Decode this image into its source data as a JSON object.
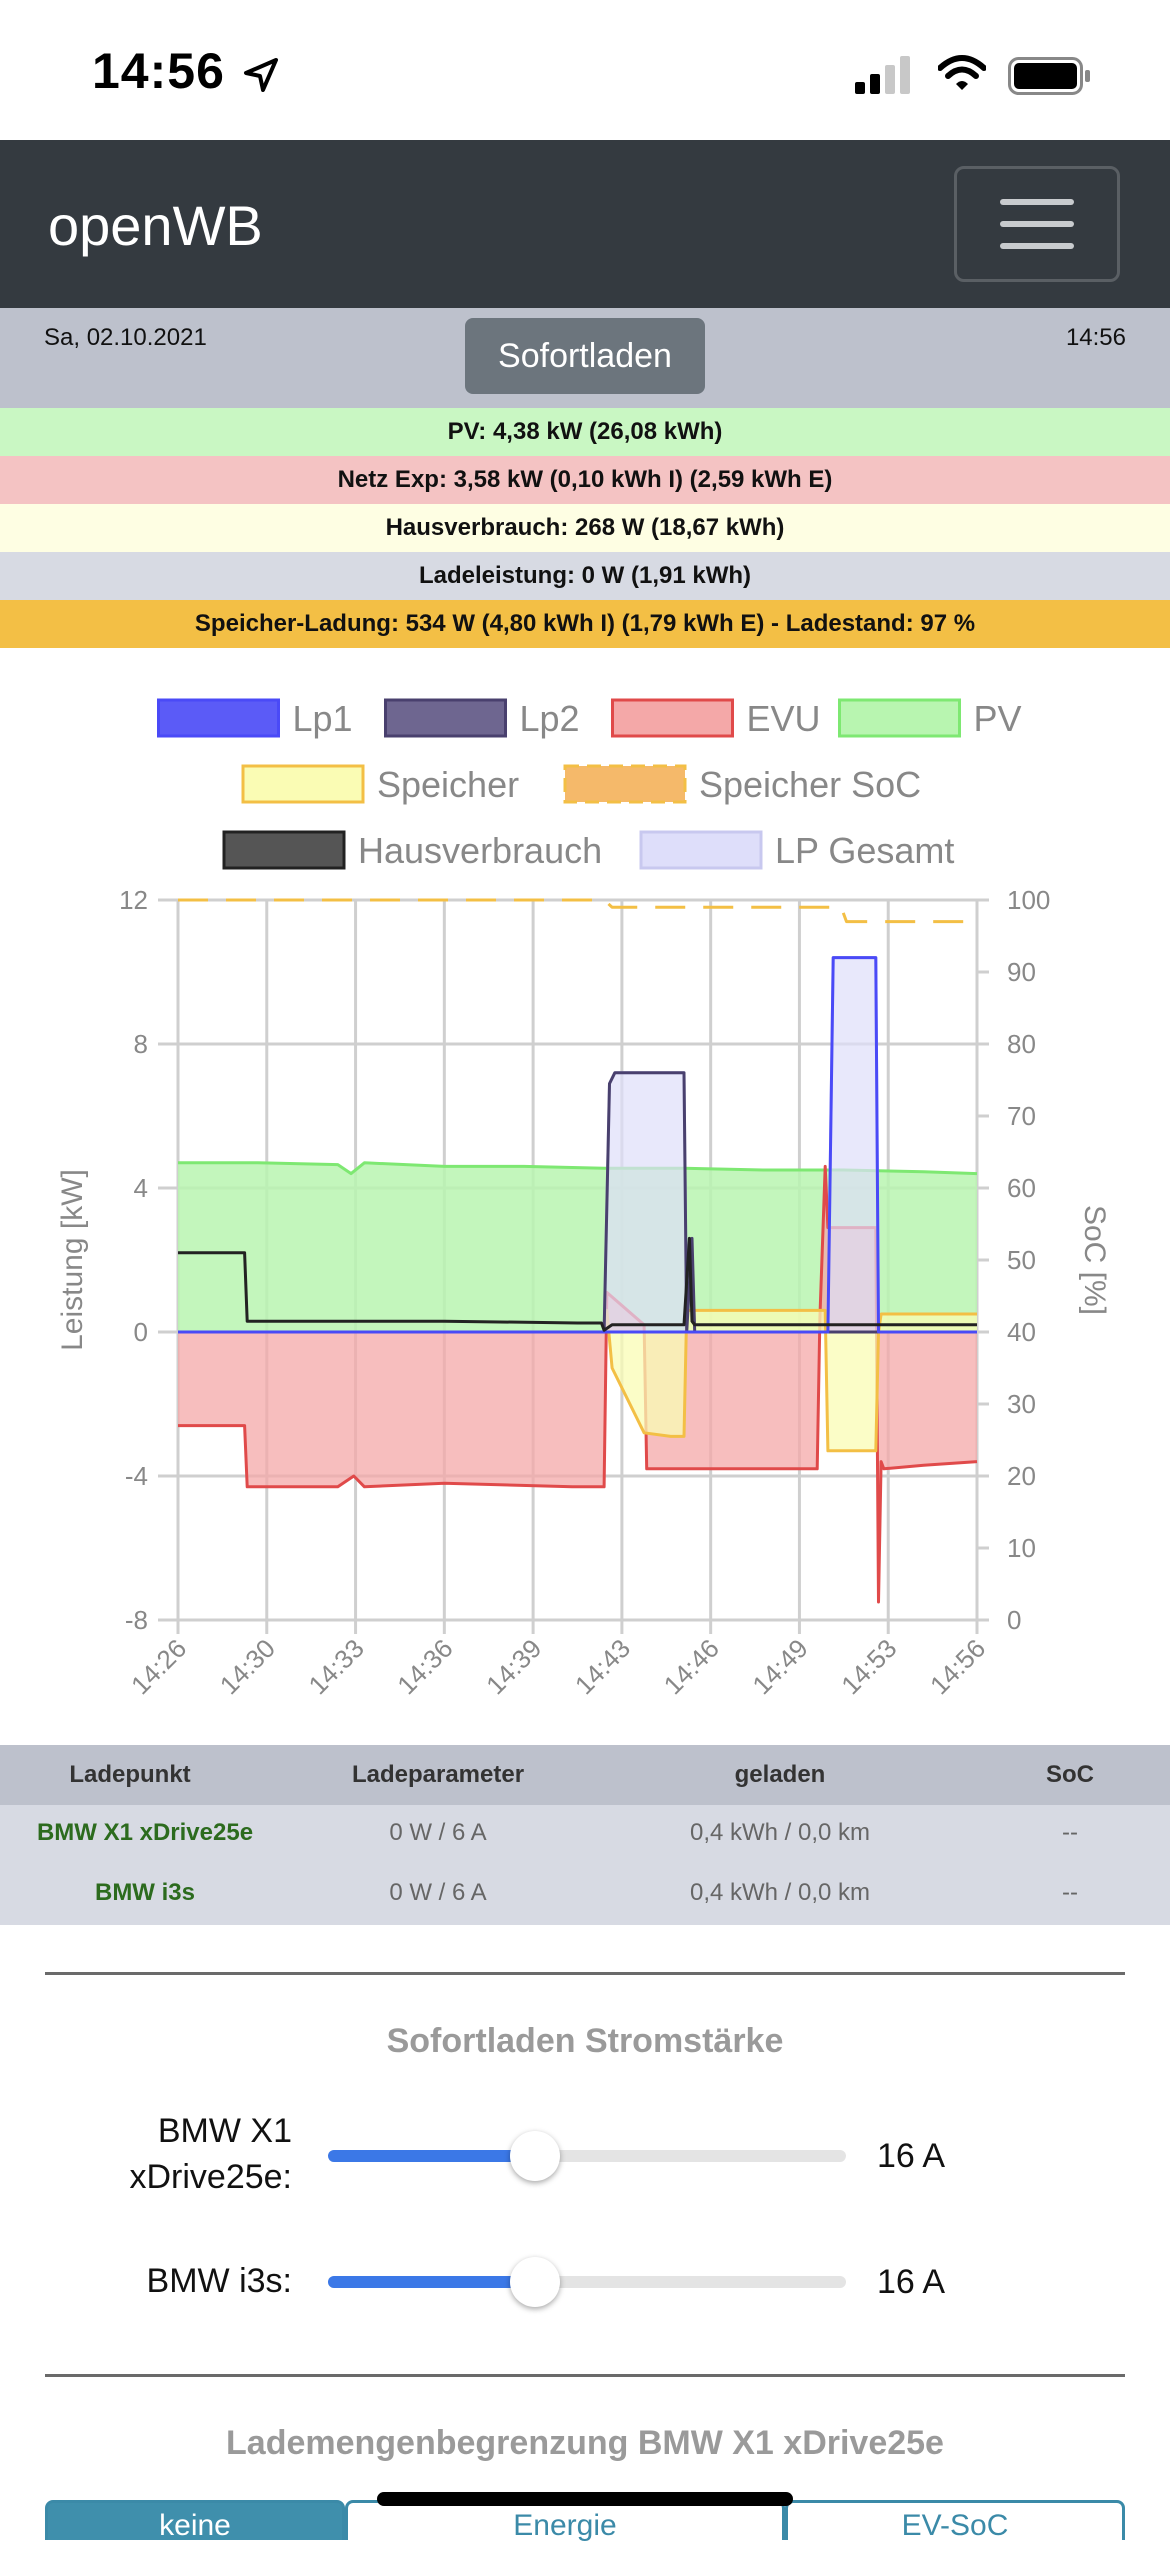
{
  "status_bar": {
    "time": "14:56",
    "icons": [
      "location-arrow-icon",
      "cellular-signal-icon",
      "wifi-icon",
      "battery-icon"
    ]
  },
  "navbar": {
    "brand": "openWB",
    "menu_icon": "hamburger-menu-icon"
  },
  "header": {
    "date": "Sa, 02.10.2021",
    "time": "14:56",
    "mode_button": "Sofortladen"
  },
  "info_strips": {
    "pv": "PV: 4,38 kW (26,08 kWh)",
    "evu": "Netz Exp: 3,58 kW (0,10 kWh I) (2,59 kWh E)",
    "haus": "Hausverbrauch: 268 W (18,67 kWh)",
    "lade": "Ladeleistung: 0 W (1,91 kWh)",
    "speicher": "Speicher-Ladung: 534 W (4,80 kWh I) (1,79 kWh E) - Ladestand: 97 %"
  },
  "chart_data": {
    "type": "line",
    "legend": {
      "placement": "top",
      "items": [
        {
          "label": "Lp1",
          "color": "#4a4af7",
          "fill": "#5b5bf7",
          "style": "solid"
        },
        {
          "label": "Lp2",
          "color": "#49406e",
          "fill": "#6e6690",
          "style": "solid"
        },
        {
          "label": "EVU",
          "color": "#e04a4a",
          "fill": "#f4a8a8",
          "style": "solid"
        },
        {
          "label": "PV",
          "color": "#7ee872",
          "fill": "#b8f5b0",
          "style": "solid"
        },
        {
          "label": "Speicher",
          "color": "#f3bf45",
          "fill": "#fafcb4",
          "style": "solid"
        },
        {
          "label": "Speicher SoC",
          "color": "#f3bf45",
          "fill": "#f5b96a",
          "style": "dashed"
        },
        {
          "label": "Hausverbrauch",
          "color": "#222222",
          "fill": "#555555",
          "style": "solid"
        },
        {
          "label": "LP Gesamt",
          "color": "#c8c8ef",
          "fill": "#dedefa",
          "style": "solid"
        }
      ]
    },
    "x_ticks": [
      "14:26",
      "14:30",
      "14:33",
      "14:36",
      "14:39",
      "14:43",
      "14:46",
      "14:49",
      "14:53",
      "14:56"
    ],
    "xlim": [
      0,
      30
    ],
    "ylim_left": [
      -8,
      12
    ],
    "y_ticks_left": [
      "12",
      "8",
      "4",
      "0",
      "-4",
      "-8"
    ],
    "ylabel_left": "Leistung [kW]",
    "ylim_right": [
      0,
      100
    ],
    "y_ticks_right": [
      "100",
      "90",
      "80",
      "70",
      "60",
      "50",
      "40",
      "30",
      "20",
      "10",
      "0"
    ],
    "ylabel_right": "SoC [%]",
    "grid": true,
    "series": [
      {
        "name": "PV",
        "axis": "left",
        "x": [
          0,
          3,
          6,
          6.5,
          7,
          10,
          13,
          16,
          19,
          22,
          25,
          28,
          30
        ],
        "y": [
          4.7,
          4.7,
          4.65,
          4.4,
          4.7,
          4.6,
          4.6,
          4.55,
          4.55,
          4.5,
          4.5,
          4.45,
          4.4
        ]
      },
      {
        "name": "EVU",
        "axis": "left",
        "x": [
          0,
          2.5,
          2.6,
          6,
          6.6,
          7,
          10,
          14.8,
          16,
          16.1,
          17.5,
          17.6,
          19,
          19.1,
          24,
          24.1,
          24.3,
          24.4,
          26.2,
          26.3,
          26.4,
          26.5,
          28,
          30
        ],
        "y": [
          -2.6,
          -2.6,
          -4.3,
          -4.3,
          -4.0,
          -4.3,
          -4.2,
          -4.3,
          -4.3,
          1.1,
          0.2,
          -3.8,
          -3.8,
          -3.8,
          -3.8,
          0.4,
          4.6,
          2.9,
          2.9,
          -7.5,
          -3.6,
          -3.8,
          -3.7,
          -3.6
        ]
      },
      {
        "name": "Speicher",
        "axis": "left",
        "x": [
          0,
          16,
          16.1,
          16.3,
          17.5,
          18.5,
          19,
          19.1,
          24,
          24.3,
          24.4,
          26.2,
          26.3,
          26.4,
          30
        ],
        "y": [
          0,
          0,
          0.6,
          -1.0,
          -2.8,
          -2.9,
          -2.9,
          0.6,
          0.6,
          0.6,
          -3.3,
          -3.3,
          0,
          0.5,
          0.5
        ]
      },
      {
        "name": "Lp1",
        "axis": "left",
        "x": [
          0,
          24.4,
          24.6,
          26.2,
          26.3,
          30
        ],
        "y": [
          0,
          0,
          10.4,
          10.4,
          0,
          0
        ]
      },
      {
        "name": "Lp2",
        "axis": "left",
        "x": [
          0,
          16,
          16.2,
          16.4,
          19,
          19.1,
          19.3,
          19.4,
          30
        ],
        "y": [
          0,
          0,
          6.9,
          7.2,
          7.2,
          0,
          2.6,
          0,
          0
        ]
      },
      {
        "name": "Hausverbrauch",
        "axis": "left",
        "x": [
          0,
          2.5,
          2.6,
          10,
          15,
          15.9,
          16,
          16.3,
          19,
          19.2,
          19.3,
          19.4,
          24,
          26,
          30
        ],
        "y": [
          2.2,
          2.2,
          0.3,
          0.3,
          0.25,
          0.25,
          0.05,
          0.2,
          0.2,
          2.6,
          0.3,
          0.2,
          0.2,
          0.2,
          0.2
        ]
      },
      {
        "name": "LP Gesamt",
        "axis": "left",
        "x": [
          0,
          16,
          16.2,
          16.4,
          19,
          19.1,
          24.4,
          24.6,
          26.2,
          26.3,
          30
        ],
        "y": [
          0,
          0,
          6.9,
          7.2,
          7.2,
          0,
          0,
          10.4,
          10.4,
          0,
          0
        ]
      },
      {
        "name": "Speicher SoC",
        "axis": "right",
        "x": [
          0,
          16,
          16.3,
          18,
          24.9,
          25.1,
          30
        ],
        "y": [
          100,
          100,
          99,
          99,
          99,
          97,
          97
        ]
      }
    ]
  },
  "table": {
    "headers": [
      "Ladepunkt",
      "Ladeparameter",
      "geladen",
      "SoC"
    ],
    "rows": [
      {
        "name": "BMW X1 xDrive25e",
        "param": "0 W / 6 A",
        "charged": "0,4 kWh / 0,0 km",
        "soc": "--"
      },
      {
        "name": "BMW i3s",
        "param": "0 W / 6 A",
        "charged": "0,4 kWh / 0,0 km",
        "soc": "--"
      }
    ]
  },
  "sofortladen": {
    "title": "Sofortladen Stromstärke",
    "sliders": [
      {
        "label_line1": "BMW X1",
        "label_line2": "xDrive25e:",
        "value": "16 A",
        "fraction": 0.4
      },
      {
        "label_line1": "BMW i3s:",
        "value": "16 A",
        "fraction": 0.4
      }
    ]
  },
  "lademengen": {
    "title": "Lademengenbegrenzung BMW X1 xDrive25e",
    "tabs": [
      {
        "label": "keine",
        "active": true
      },
      {
        "label": "Energie",
        "active": false
      },
      {
        "label": "EV-SoC",
        "active": false
      }
    ]
  }
}
